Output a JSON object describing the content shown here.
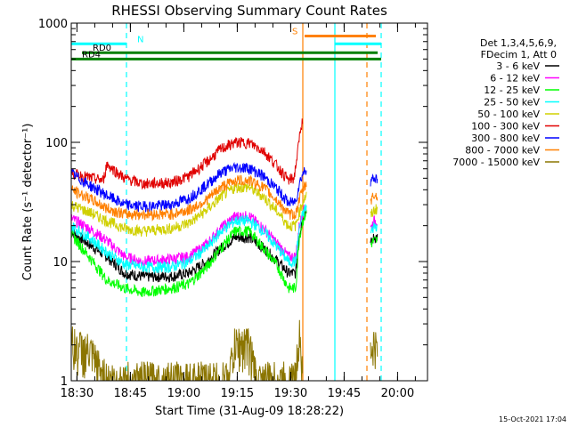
{
  "chart_data": {
    "type": "line",
    "title": "RHESSI Observing Summary Count Rates",
    "xlabel": "Start Time (31-Aug-09 18:28:22)",
    "ylabel": "Count Rate (s⁻¹ detector⁻¹)",
    "x_unit": "minutes after 18:28:22",
    "xlim": [
      0,
      100
    ],
    "ylim": [
      1,
      1000
    ],
    "y_scale": "log",
    "x_ticks": [
      {
        "value": 1.6,
        "label": "18:30"
      },
      {
        "value": 16.6,
        "label": "18:45"
      },
      {
        "value": 31.6,
        "label": "19:00"
      },
      {
        "value": 46.6,
        "label": "19:15"
      },
      {
        "value": 61.6,
        "label": "19:30"
      },
      {
        "value": 76.6,
        "label": "19:45"
      },
      {
        "value": 91.6,
        "label": "20:00"
      }
    ],
    "y_ticks": [
      {
        "value": 1,
        "label": "1"
      },
      {
        "value": 10,
        "label": "10"
      },
      {
        "value": 100,
        "label": "100"
      },
      {
        "value": 1000,
        "label": "1000"
      }
    ],
    "legend_header": [
      "Det 1,3,4,5,6,9,",
      "FDecim 1, Att 0"
    ],
    "legend_position": "right",
    "series": [
      {
        "name": "3 - 6 keV",
        "color": "#000000",
        "points": [
          [
            0,
            18
          ],
          [
            5,
            14
          ],
          [
            10,
            11
          ],
          [
            15,
            8
          ],
          [
            20,
            7.5
          ],
          [
            28,
            7.5
          ],
          [
            33,
            8
          ],
          [
            38,
            10
          ],
          [
            42,
            13
          ],
          [
            46,
            16
          ],
          [
            50,
            16
          ],
          [
            54,
            13
          ],
          [
            58,
            10
          ],
          [
            61,
            8
          ],
          [
            63,
            8
          ],
          [
            64,
            17
          ],
          [
            65,
            24
          ],
          [
            66,
            28
          ]
        ],
        "points_after": [
          [
            84,
            14
          ],
          [
            85,
            16
          ],
          [
            86,
            16
          ]
        ]
      },
      {
        "name": "6 - 12 keV",
        "color": "#ff00ff",
        "points": [
          [
            0,
            23
          ],
          [
            5,
            19
          ],
          [
            10,
            15
          ],
          [
            15,
            11
          ],
          [
            20,
            10
          ],
          [
            28,
            10.5
          ],
          [
            33,
            11
          ],
          [
            38,
            14
          ],
          [
            42,
            19
          ],
          [
            46,
            24
          ],
          [
            50,
            24
          ],
          [
            54,
            19
          ],
          [
            58,
            14
          ],
          [
            61,
            11
          ],
          [
            63,
            11
          ],
          [
            64,
            20
          ],
          [
            65,
            26
          ],
          [
            66,
            30
          ]
        ],
        "points_after": [
          [
            84,
            19
          ],
          [
            85,
            22
          ],
          [
            86,
            22
          ]
        ]
      },
      {
        "name": "12 - 25 keV",
        "color": "#00ff00",
        "points": [
          [
            0,
            17
          ],
          [
            5,
            11
          ],
          [
            10,
            7
          ],
          [
            15,
            6
          ],
          [
            20,
            5.5
          ],
          [
            28,
            6
          ],
          [
            33,
            6.5
          ],
          [
            38,
            9
          ],
          [
            42,
            13
          ],
          [
            46,
            18
          ],
          [
            50,
            18
          ],
          [
            54,
            13
          ],
          [
            58,
            9
          ],
          [
            61,
            6
          ],
          [
            63,
            6
          ],
          [
            64,
            16
          ],
          [
            65,
            22
          ],
          [
            66,
            26
          ]
        ],
        "points_after": [
          [
            84,
            14
          ],
          [
            85,
            15
          ],
          [
            86,
            15
          ]
        ]
      },
      {
        "name": "25 - 50 keV",
        "color": "#00ffff",
        "points": [
          [
            0,
            20
          ],
          [
            5,
            16
          ],
          [
            10,
            12
          ],
          [
            15,
            9.5
          ],
          [
            20,
            9
          ],
          [
            28,
            9
          ],
          [
            33,
            10
          ],
          [
            38,
            13
          ],
          [
            42,
            18
          ],
          [
            46,
            22
          ],
          [
            50,
            22
          ],
          [
            54,
            18
          ],
          [
            58,
            13
          ],
          [
            61,
            10
          ],
          [
            63,
            10
          ],
          [
            64,
            19
          ],
          [
            65,
            25
          ],
          [
            66,
            29
          ]
        ],
        "points_after": [
          [
            84,
            17
          ],
          [
            85,
            20
          ],
          [
            86,
            20
          ]
        ]
      },
      {
        "name": "50 - 100 keV",
        "color": "#d0d000",
        "points": [
          [
            0,
            30
          ],
          [
            5,
            26
          ],
          [
            10,
            22
          ],
          [
            15,
            19
          ],
          [
            20,
            18
          ],
          [
            28,
            19
          ],
          [
            33,
            21
          ],
          [
            38,
            27
          ],
          [
            42,
            35
          ],
          [
            46,
            42
          ],
          [
            50,
            42
          ],
          [
            54,
            35
          ],
          [
            58,
            26
          ],
          [
            61,
            20
          ],
          [
            63,
            20
          ],
          [
            64,
            26
          ],
          [
            65,
            32
          ],
          [
            66,
            36
          ]
        ],
        "points_after": [
          [
            84,
            24
          ],
          [
            85,
            27
          ],
          [
            86,
            28
          ]
        ]
      },
      {
        "name": "100 - 300 keV",
        "color": "#e00000",
        "points": [
          [
            0,
            55
          ],
          [
            6,
            50
          ],
          [
            9,
            48
          ],
          [
            10,
            66
          ],
          [
            11,
            62
          ],
          [
            15,
            50
          ],
          [
            20,
            45
          ],
          [
            28,
            46
          ],
          [
            33,
            52
          ],
          [
            38,
            68
          ],
          [
            42,
            88
          ],
          [
            46,
            100
          ],
          [
            50,
            99
          ],
          [
            54,
            85
          ],
          [
            58,
            62
          ],
          [
            61,
            48
          ],
          [
            62.5,
            50
          ],
          [
            63.5,
            80
          ],
          [
            64.5,
            140
          ],
          [
            65,
            150
          ]
        ],
        "points_after": []
      },
      {
        "name": "300 - 800 keV",
        "color": "#0000ff",
        "points": [
          [
            0,
            55
          ],
          [
            5,
            44
          ],
          [
            10,
            36
          ],
          [
            15,
            30
          ],
          [
            20,
            29
          ],
          [
            28,
            30
          ],
          [
            33,
            34
          ],
          [
            38,
            44
          ],
          [
            42,
            56
          ],
          [
            46,
            62
          ],
          [
            50,
            61
          ],
          [
            54,
            52
          ],
          [
            58,
            40
          ],
          [
            61,
            31
          ],
          [
            63,
            32
          ],
          [
            64,
            45
          ],
          [
            65,
            55
          ],
          [
            66,
            60
          ]
        ],
        "points_after": [
          [
            84,
            48
          ],
          [
            85,
            50
          ],
          [
            86,
            50
          ]
        ]
      },
      {
        "name": "800 - 7000 keV",
        "color": "#ff8000",
        "points": [
          [
            0,
            40
          ],
          [
            5,
            34
          ],
          [
            10,
            28
          ],
          [
            15,
            25
          ],
          [
            20,
            25
          ],
          [
            28,
            25
          ],
          [
            33,
            27
          ],
          [
            38,
            33
          ],
          [
            42,
            42
          ],
          [
            46,
            48
          ],
          [
            50,
            48
          ],
          [
            54,
            42
          ],
          [
            58,
            32
          ],
          [
            61,
            25
          ],
          [
            63,
            25
          ],
          [
            64,
            33
          ],
          [
            65,
            40
          ],
          [
            66,
            45
          ]
        ],
        "points_after": [
          [
            84,
            33
          ],
          [
            85,
            36
          ],
          [
            86,
            36
          ]
        ]
      },
      {
        "name": "7000 - 15000 keV",
        "color": "#8b7500",
        "points": [
          [
            0,
            2
          ],
          [
            5,
            1.7
          ],
          [
            10,
            1
          ],
          [
            44,
            1
          ],
          [
            46,
            2
          ],
          [
            50,
            2
          ],
          [
            52,
            1
          ],
          [
            63,
            1
          ],
          [
            64,
            3
          ],
          [
            65,
            1
          ]
        ],
        "points_after": [
          [
            84,
            1.6
          ],
          [
            85,
            2
          ],
          [
            86,
            1.6
          ]
        ]
      }
    ],
    "annotations": {
      "bars": [
        {
          "label": "N",
          "color": "#00ffff",
          "x": [
            0,
            15.5
          ],
          "level": 670
        },
        {
          "label": "S",
          "color": "#ff8000",
          "x": [
            65.5,
            85.5
          ],
          "level": 780
        },
        {
          "label": "",
          "color": "#00ffff",
          "x": [
            74,
            87
          ],
          "level": 670
        },
        {
          "label": "RD0",
          "color": "#008000",
          "x": [
            3,
            86
          ],
          "level": 565
        },
        {
          "label": "RD4",
          "color": "#008000",
          "x": [
            0,
            87
          ],
          "level": 500
        }
      ],
      "vlines": [
        {
          "x": 15.5,
          "color": "#00ffff",
          "style": "dashed"
        },
        {
          "x": 65.0,
          "color": "#ff8000",
          "style": "solid"
        },
        {
          "x": 74.0,
          "color": "#00ffff",
          "style": "solid"
        },
        {
          "x": 83.0,
          "color": "#ff8000",
          "style": "dashed"
        },
        {
          "x": 87.0,
          "color": "#00ffff",
          "style": "dashed"
        }
      ]
    }
  },
  "footer": {
    "date": "15-Oct-2021 17:04"
  }
}
